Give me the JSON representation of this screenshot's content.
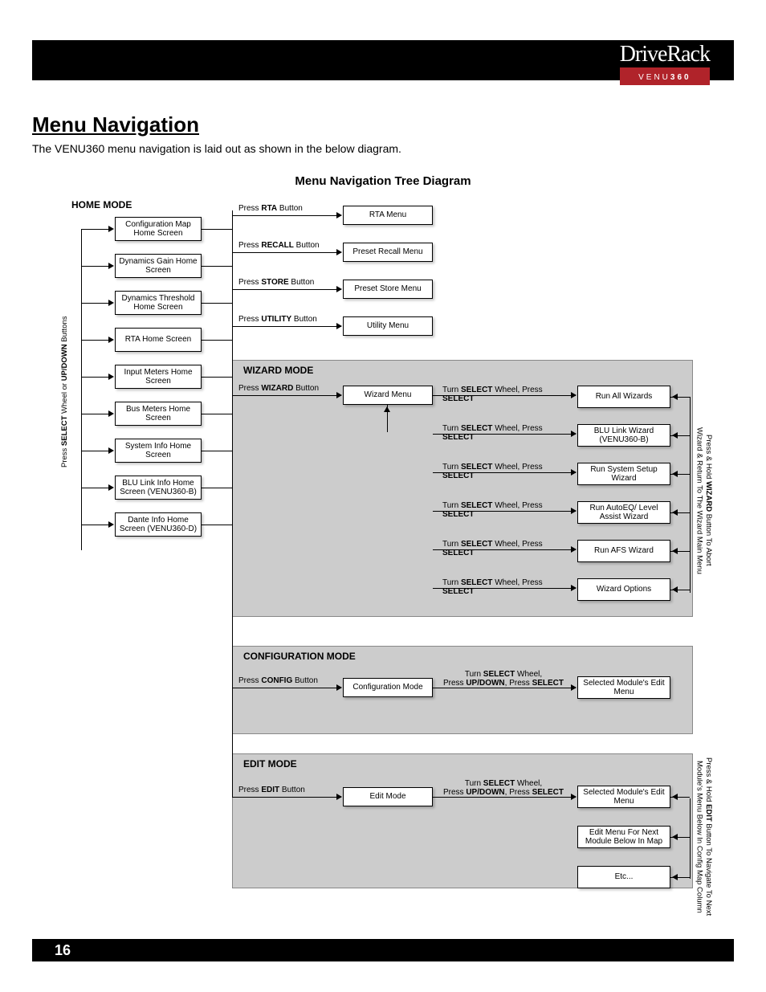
{
  "header": {
    "logo_main": "DriveRack",
    "logo_sub_prefix": "VENU",
    "logo_sub_bold": "360"
  },
  "title": "Menu Navigation",
  "intro": "The VENU360 menu navigation is laid out as shown in the below diagram.",
  "subtitle": "Menu Navigation Tree Diagram",
  "home_mode": {
    "label": "HOME MODE",
    "side_note_pre": "Press ",
    "side_note_b1": "SELECT",
    "side_note_mid": " Wheel or ",
    "side_note_b2": "UP/DOWN",
    "side_note_post": " Buttons",
    "screens": [
      "Configuration Map Home Screen",
      "Dynamics Gain Home Screen",
      "Dynamics Threshold Home Screen",
      "RTA Home Screen",
      "Input Meters Home Screen",
      "Bus Meters Home Screen",
      "System Info Home Screen",
      "BLU Link Info Home Screen (VENU360-B)",
      "Dante Info Home Screen (VENU360-D)"
    ],
    "actions": [
      {
        "pre": "Press ",
        "b": "RTA",
        "post": " Button",
        "target": "RTA Menu"
      },
      {
        "pre": "Press ",
        "b": "RECALL",
        "post": " Button",
        "target": "Preset Recall Menu"
      },
      {
        "pre": "Press ",
        "b": "STORE",
        "post": " Button",
        "target": "Preset Store Menu"
      },
      {
        "pre": "Press ",
        "b": "UTILITY",
        "post": " Button",
        "target": "Utility Menu"
      }
    ]
  },
  "wizard_mode": {
    "label": "WIZARD MODE",
    "action": {
      "pre": "Press ",
      "b": "WIZARD",
      "post": " Button",
      "target": "Wizard Menu"
    },
    "step_pre": "Turn ",
    "step_b1": "SELECT",
    "step_mid": " Wheel, Press ",
    "step_b2": "SELECT",
    "results": [
      "Run All Wizards",
      "BLU Link Wizard (VENU360-B)",
      "Run System Setup Wizard",
      "Run AutoEQ/ Level Assist Wizard",
      "Run AFS Wizard",
      "Wizard Options"
    ],
    "side_note_pre": "Press & Hold ",
    "side_note_b": "WIZARD",
    "side_note_post": " Button To Abort Wizard & Return To The Wizard Main Menu"
  },
  "config_mode": {
    "label": "CONFIGURATION MODE",
    "action": {
      "pre": "Press ",
      "b": "CONFIG",
      "post": " Button",
      "target": "Configuration Mode"
    },
    "step_l1_pre": "Turn ",
    "step_l1_b": "SELECT",
    "step_l1_post": " Wheel,",
    "step_l2_pre": "Press ",
    "step_l2_b": "UP/DOWN",
    "step_l2_mid": ", Press ",
    "step_l2_b2": "SELECT",
    "result": "Selected Module's Edit Menu"
  },
  "edit_mode": {
    "label": "EDIT MODE",
    "action": {
      "pre": "Press ",
      "b": "EDIT",
      "post": " Button",
      "target": "Edit Mode"
    },
    "step_l1_pre": "Turn ",
    "step_l1_b": "SELECT",
    "step_l1_post": " Wheel,",
    "step_l2_pre": "Press ",
    "step_l2_b": "UP/DOWN",
    "step_l2_mid": ", Press ",
    "step_l2_b2": "SELECT",
    "results": [
      "Selected Module's Edit Menu",
      "Edit Menu For Next Module Below In Map",
      "Etc..."
    ],
    "side_note_pre": "Press & Hold ",
    "side_note_b": "EDIT",
    "side_note_post": " Button To Navigate To Next Module's Menu Below In Config Map Column"
  },
  "footer": {
    "page": "16"
  },
  "colors": {
    "header_bg": "#000000",
    "accent": "#b0232a",
    "section_bg": "#cccccc",
    "page_bg": "#ffffff"
  }
}
